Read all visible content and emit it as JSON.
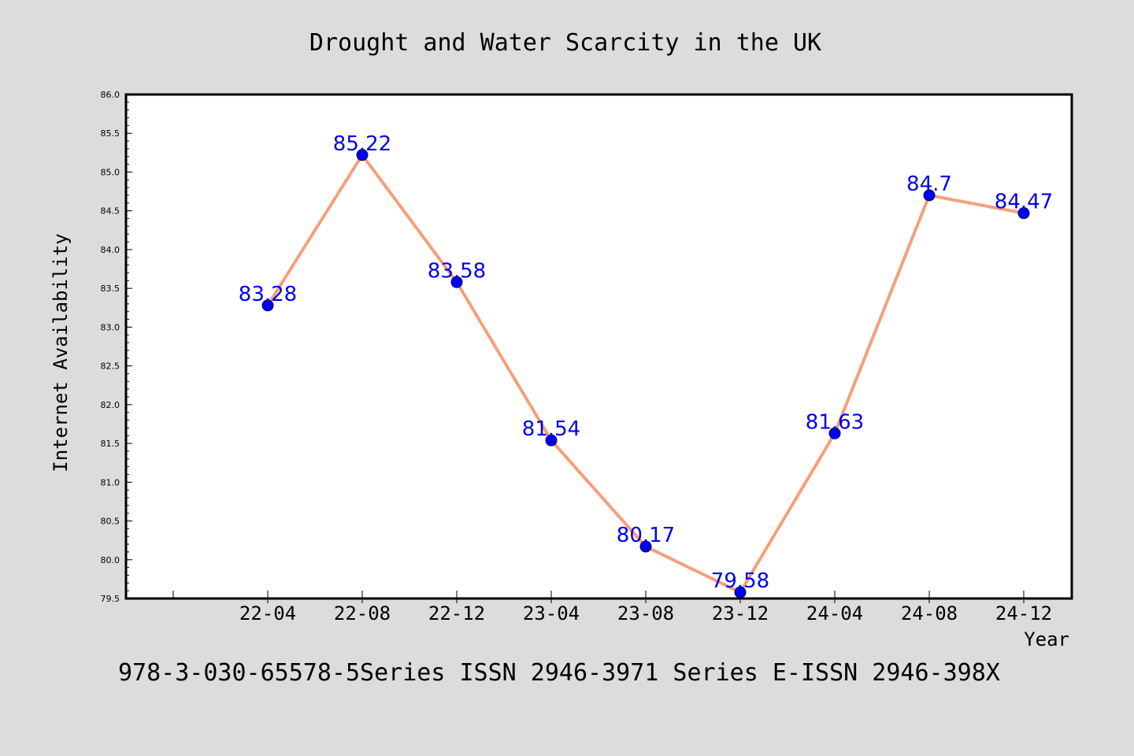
{
  "chart_data": {
    "type": "line",
    "title": "Drought and Water Scarcity in the UK",
    "xlabel": "Year",
    "ylabel": "Internet Availability",
    "footer": "978-3-030-65578-5Series ISSN 2946-3971 Series E-ISSN 2946-398X",
    "categories": [
      "22-04",
      "22-08",
      "22-12",
      "23-04",
      "23-08",
      "23-12",
      "24-04",
      "24-08",
      "24-12"
    ],
    "series": [
      {
        "values": [
          83.28,
          85.22,
          83.58,
          81.54,
          80.17,
          79.58,
          81.63,
          84.7,
          84.47
        ],
        "labels": [
          "83.28",
          "85.22",
          "83.58",
          "81.54",
          "80.17",
          "79.58",
          "81.63",
          "84.7",
          "84.47"
        ]
      }
    ],
    "ylim": [
      79.5,
      86.0
    ],
    "yticks": [
      "79.5",
      "80.0",
      "80.5",
      "81.0",
      "81.5",
      "82.0",
      "82.5",
      "83.0",
      "83.5",
      "84.0",
      "84.5",
      "85.0",
      "85.5",
      "86.0"
    ],
    "grid": false,
    "line_color": "#f4a07a",
    "marker_color": "#0000ee",
    "label_color": "#0000ee",
    "background_color": "#dcdcdc",
    "plot_background_color": "#ffffff"
  }
}
